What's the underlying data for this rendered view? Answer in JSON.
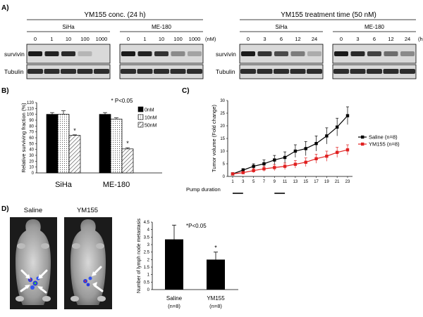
{
  "panels": {
    "A": "A)",
    "B": "B)",
    "C": "C)",
    "D": "D)"
  },
  "panelA": {
    "left": {
      "title": "YM155 conc. (24 h)",
      "cell_lines": [
        "SiHa",
        "ME-180"
      ],
      "concentrations": [
        "0",
        "1",
        "10",
        "100",
        "1000"
      ],
      "unit": "(nM)",
      "survivin_intensity": {
        "SiHa": [
          1.0,
          0.95,
          0.9,
          0.05,
          0.0
        ],
        "ME-180": [
          1.0,
          0.95,
          0.85,
          0.3,
          0.15
        ]
      }
    },
    "right": {
      "title": "YM155 treatment time (50 nM)",
      "cell_lines": [
        "SiHa",
        "ME-180"
      ],
      "times": [
        "0",
        "3",
        "6",
        "12",
        "24"
      ],
      "unit": "(h)",
      "survivin_intensity": {
        "SiHa": [
          1.0,
          0.85,
          0.7,
          0.4,
          0.1
        ],
        "ME-180": [
          1.0,
          0.9,
          0.75,
          0.5,
          0.3
        ]
      }
    },
    "row_labels": [
      "survivin",
      "Tubulin"
    ]
  },
  "chart_data": [
    {
      "type": "bar",
      "panel": "B",
      "title": "",
      "annotation": "* P<0.05",
      "ylabel": "Relative surviving fraction (%)",
      "xlabel": "",
      "ylim": [
        0,
        120
      ],
      "yticks": [
        "0",
        "10",
        "20",
        "30",
        "40",
        "50",
        "60",
        "70",
        "80",
        "90",
        "100",
        "110",
        "120"
      ],
      "categories": [
        "SiHa",
        "ME-180"
      ],
      "series": [
        {
          "name": "0nM",
          "values": [
            100,
            100
          ],
          "errors": [
            3,
            3
          ]
        },
        {
          "name": "10nM",
          "values": [
            100,
            92
          ],
          "errors": [
            6,
            2
          ]
        },
        {
          "name": "50nM",
          "values": [
            64,
            41
          ],
          "errors": [
            1,
            2
          ]
        }
      ],
      "significance": [
        "*",
        "*"
      ],
      "legend": "top-right"
    },
    {
      "type": "line",
      "panel": "C",
      "ylabel": "Tumor volume (Fold change)",
      "xlabel": "Pump duration",
      "ylim": [
        0,
        30
      ],
      "yticks": [
        "0",
        "5",
        "10",
        "15",
        "20",
        "25",
        "30"
      ],
      "x": [
        1,
        3,
        5,
        7,
        9,
        11,
        13,
        15,
        17,
        19,
        21,
        23
      ],
      "xticks": [
        "1",
        "3",
        "5",
        "7",
        "9",
        "11",
        "13",
        "15",
        "17",
        "19",
        "21",
        "23"
      ],
      "series": [
        {
          "name": "Saline (n=8)",
          "color": "#000000",
          "values": [
            1.0,
            2.5,
            4.0,
            5.0,
            6.5,
            7.5,
            10.0,
            11.0,
            13.0,
            16.0,
            19.5,
            24.0
          ],
          "errors": [
            0.3,
            0.6,
            1.0,
            1.5,
            1.8,
            2.2,
            2.5,
            2.8,
            3.0,
            3.2,
            3.5,
            3.5
          ]
        },
        {
          "name": "YM155 (n=8)",
          "color": "#e02020",
          "values": [
            1.0,
            1.5,
            2.3,
            3.0,
            3.5,
            4.0,
            4.8,
            5.6,
            7.0,
            8.0,
            9.5,
            10.5
          ],
          "errors": [
            0.2,
            0.5,
            0.8,
            1.0,
            1.2,
            1.3,
            1.5,
            1.7,
            1.8,
            2.0,
            2.0,
            2.0
          ]
        }
      ],
      "pump_periods": [
        [
          1,
          3
        ],
        [
          9,
          11
        ]
      ],
      "legend": "right"
    },
    {
      "type": "bar",
      "panel": "D",
      "annotation": "*P<0.05",
      "ylabel": "Number of lymph node metastasis",
      "ylim": [
        0,
        4.5
      ],
      "yticks": [
        "0",
        "0.5",
        "1",
        "1.5",
        "2",
        "2.5",
        "3",
        "3.5",
        "4",
        "4.5"
      ],
      "categories": [
        "Saline",
        "YM155"
      ],
      "category_sub": [
        "(n=8)",
        "(n=8)"
      ],
      "values": [
        3.35,
        2.0
      ],
      "errors": [
        0.95,
        0.5
      ],
      "significance": [
        "",
        "*"
      ]
    }
  ],
  "panelD_images": {
    "labels": [
      "Saline",
      "YM155"
    ]
  },
  "colors": {
    "saline": "#000000",
    "ym155": "#e02020",
    "blot_band": "#1a1a1a",
    "blot_bg": "#d9d9d9"
  }
}
